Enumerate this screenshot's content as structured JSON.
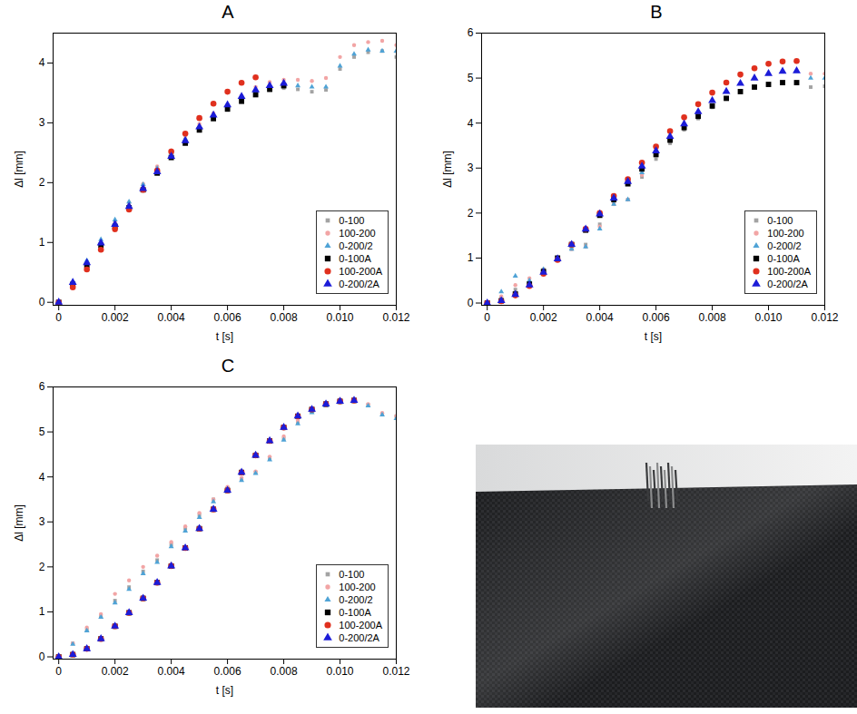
{
  "chart_data": [
    {
      "type": "scatter",
      "title": "A",
      "x_label": "t [s]",
      "y_label": "Δl [mm]",
      "x": [
        0,
        0.0005,
        0.001,
        0.0015,
        0.002,
        0.0025,
        0.003,
        0.0035,
        0.004,
        0.0045,
        0.005,
        0.0055,
        0.006,
        0.0065,
        0.007,
        0.0075,
        0.008,
        0.0085,
        0.009,
        0.0095,
        0.01,
        0.0105,
        0.011,
        0.0115,
        0.012
      ],
      "xlim": [
        -0.0002,
        0.012
      ],
      "xticks": [
        0,
        0.002,
        0.004,
        0.006,
        0.008,
        {
          "value": 0.01,
          "label": "0.010"
        },
        0.012
      ],
      "ylim": [
        -0.05,
        4.5
      ],
      "yticks": [
        0,
        1,
        2,
        3,
        4
      ],
      "grid": false,
      "legend": "bottom-right",
      "series": [
        {
          "name": "0-100",
          "color": "#a3a3a3",
          "marker": "square",
          "values": [
            0,
            0.3,
            0.63,
            0.97,
            1.3,
            1.62,
            1.92,
            2.22,
            2.48,
            2.72,
            2.92,
            3.1,
            3.26,
            3.38,
            3.48,
            3.55,
            3.58,
            3.56,
            3.52,
            3.55,
            3.9,
            4.1,
            4.18,
            4.2,
            4.1
          ]
        },
        {
          "name": "100-200",
          "color": "#f2a5a5",
          "marker": "circle",
          "values": [
            0,
            0.32,
            0.66,
            1.0,
            1.34,
            1.67,
            1.98,
            2.27,
            2.54,
            2.78,
            2.98,
            3.16,
            3.3,
            3.45,
            3.6,
            3.68,
            3.72,
            3.72,
            3.7,
            3.75,
            4.1,
            4.3,
            4.35,
            4.37,
            4.3
          ]
        },
        {
          "name": "0-200/2",
          "color": "#4fa3d6",
          "marker": "triangle",
          "values": [
            0,
            0.35,
            0.7,
            1.05,
            1.38,
            1.68,
            1.97,
            2.24,
            2.5,
            2.73,
            2.94,
            3.12,
            3.28,
            3.42,
            3.53,
            3.6,
            3.63,
            3.62,
            3.6,
            3.6,
            3.95,
            4.15,
            4.22,
            4.2,
            4.2
          ]
        },
        {
          "name": "0-100A",
          "color": "#000000",
          "marker": "square",
          "values": [
            0,
            0.3,
            0.62,
            0.95,
            1.27,
            1.58,
            1.88,
            2.16,
            2.42,
            2.66,
            2.88,
            3.07,
            3.23,
            3.36,
            3.47,
            3.56,
            3.62,
            null,
            null,
            null,
            null,
            null,
            null,
            null,
            null
          ]
        },
        {
          "name": "100-200A",
          "color": "#e0301e",
          "marker": "circle",
          "values": [
            0,
            0.25,
            0.55,
            0.88,
            1.22,
            1.55,
            1.88,
            2.2,
            2.52,
            2.82,
            3.08,
            3.32,
            3.52,
            3.67,
            3.76,
            null,
            null,
            null,
            null,
            null,
            null,
            null,
            null,
            null,
            null
          ]
        },
        {
          "name": "0-200/2A",
          "color": "#1c1cd8",
          "marker": "triangle",
          "values": [
            0,
            0.33,
            0.66,
            0.99,
            1.3,
            1.6,
            1.9,
            2.18,
            2.44,
            2.7,
            2.93,
            3.13,
            3.3,
            3.44,
            3.55,
            3.62,
            3.66,
            null,
            null,
            null,
            null,
            null,
            null,
            null,
            null
          ]
        }
      ]
    },
    {
      "type": "scatter",
      "title": "B",
      "x_label": "t [s]",
      "y_label": "Δl [mm]",
      "x": [
        0,
        0.0005,
        0.001,
        0.0015,
        0.002,
        0.0025,
        0.003,
        0.0035,
        0.004,
        0.0045,
        0.005,
        0.0055,
        0.006,
        0.0065,
        0.007,
        0.0075,
        0.008,
        0.0085,
        0.009,
        0.0095,
        0.01,
        0.0105,
        0.011,
        0.0115,
        0.012
      ],
      "xlim": [
        -0.0002,
        0.012
      ],
      "xticks": [
        0,
        0.002,
        0.004,
        0.006,
        0.008,
        {
          "value": 0.01,
          "label": "0.010"
        },
        0.012
      ],
      "ylim": [
        -0.05,
        6
      ],
      "yticks": [
        0,
        1,
        2,
        3,
        4,
        5,
        6
      ],
      "grid": false,
      "legend": "bottom-right",
      "series": [
        {
          "name": "0-100",
          "color": "#a3a3a3",
          "marker": "square",
          "values": [
            0,
            0.1,
            0.3,
            0.45,
            0.75,
            1.0,
            1.2,
            1.3,
            1.75,
            2.2,
            2.3,
            2.8,
            3.2,
            3.55,
            3.85,
            4.1,
            4.35,
            4.55,
            4.7,
            4.8,
            4.86,
            4.9,
            4.88,
            4.8,
            4.82
          ]
        },
        {
          "name": "100-200",
          "color": "#f2a5a5",
          "marker": "circle",
          "values": [
            0,
            0.15,
            0.4,
            0.55,
            0.75,
            1.0,
            1.2,
            1.25,
            1.7,
            2.2,
            2.3,
            2.85,
            3.4,
            3.8,
            4.1,
            4.4,
            4.65,
            4.88,
            5.05,
            5.2,
            5.3,
            5.36,
            5.37,
            5.1,
            5.1
          ]
        },
        {
          "name": "0-200/2",
          "color": "#4fa3d6",
          "marker": "triangle",
          "values": [
            0,
            0.25,
            0.6,
            0.5,
            0.75,
            0.95,
            1.2,
            1.25,
            1.65,
            2.2,
            2.3,
            2.9,
            3.35,
            3.7,
            3.98,
            4.25,
            4.5,
            4.7,
            4.88,
            5.0,
            5.1,
            5.15,
            5.15,
            5.0,
            5.0
          ]
        },
        {
          "name": "0-100A",
          "color": "#000000",
          "marker": "square",
          "values": [
            0,
            0.05,
            0.2,
            0.42,
            0.7,
            1.0,
            1.3,
            1.62,
            1.95,
            2.3,
            2.65,
            2.98,
            3.3,
            3.62,
            3.9,
            4.15,
            4.38,
            4.55,
            4.7,
            4.8,
            4.86,
            4.9,
            4.9,
            null,
            null
          ]
        },
        {
          "name": "100-200A",
          "color": "#e0301e",
          "marker": "circle",
          "values": [
            0,
            0.04,
            0.17,
            0.38,
            0.65,
            0.96,
            1.3,
            1.65,
            2.0,
            2.38,
            2.75,
            3.12,
            3.48,
            3.82,
            4.13,
            4.42,
            4.68,
            4.9,
            5.08,
            5.22,
            5.32,
            5.37,
            5.38,
            null,
            null
          ]
        },
        {
          "name": "0-200/2A",
          "color": "#1c1cd8",
          "marker": "triangle",
          "values": [
            0,
            0.05,
            0.19,
            0.4,
            0.68,
            0.98,
            1.3,
            1.64,
            1.98,
            2.33,
            2.7,
            3.04,
            3.38,
            3.7,
            3.98,
            4.25,
            4.5,
            4.7,
            4.88,
            5.0,
            5.1,
            5.15,
            5.16,
            null,
            null
          ]
        }
      ]
    },
    {
      "type": "scatter",
      "title": "C",
      "x_label": "t [s]",
      "y_label": "Δl [mm]",
      "x": [
        0,
        0.0005,
        0.001,
        0.0015,
        0.002,
        0.0025,
        0.003,
        0.0035,
        0.004,
        0.0045,
        0.005,
        0.0055,
        0.006,
        0.0065,
        0.007,
        0.0075,
        0.008,
        0.0085,
        0.009,
        0.0095,
        0.01,
        0.0105,
        0.011,
        0.0115,
        0.012
      ],
      "xlim": [
        -0.0002,
        0.012
      ],
      "xticks": [
        0,
        0.002,
        0.004,
        0.006,
        0.008,
        {
          "value": 0.01,
          "label": "0.010"
        },
        0.012
      ],
      "ylim": [
        -0.05,
        6
      ],
      "yticks": [
        0,
        1,
        2,
        3,
        4,
        5,
        6
      ],
      "grid": false,
      "legend": "bottom-right",
      "series": [
        {
          "name": "0-100",
          "color": "#a3a3a3",
          "marker": "square",
          "values": [
            0,
            0.3,
            0.6,
            0.9,
            1.25,
            1.55,
            1.9,
            2.15,
            2.5,
            2.85,
            3.15,
            3.5,
            3.75,
            3.95,
            4.1,
            4.4,
            4.85,
            5.2,
            5.45,
            5.6,
            5.7,
            5.7,
            5.6,
            5.4,
            5.35
          ]
        },
        {
          "name": "100-200",
          "color": "#f2a5a5",
          "marker": "circle",
          "values": [
            0,
            0.3,
            0.65,
            0.95,
            1.4,
            1.7,
            2.0,
            2.25,
            2.55,
            2.9,
            3.2,
            3.5,
            3.78,
            3.98,
            4.12,
            4.45,
            4.9,
            5.25,
            5.48,
            5.62,
            5.72,
            5.72,
            5.62,
            5.42,
            5.35
          ]
        },
        {
          "name": "0-200/2",
          "color": "#4fa3d6",
          "marker": "triangle",
          "values": [
            0,
            0.28,
            0.58,
            0.88,
            1.2,
            1.5,
            1.85,
            2.1,
            2.45,
            2.8,
            3.1,
            3.45,
            3.72,
            3.92,
            4.08,
            4.38,
            4.82,
            5.18,
            5.43,
            5.58,
            5.68,
            5.68,
            5.58,
            5.38,
            5.3
          ]
        },
        {
          "name": "0-100A",
          "color": "#000000",
          "marker": "square",
          "values": [
            0,
            0.05,
            0.18,
            0.4,
            0.68,
            0.98,
            1.3,
            1.65,
            2.02,
            2.42,
            2.85,
            3.28,
            3.7,
            4.1,
            4.48,
            4.8,
            5.1,
            5.35,
            5.5,
            5.62,
            5.68,
            5.7,
            null,
            null,
            null
          ]
        },
        {
          "name": "100-200A",
          "color": "#e0301e",
          "marker": "circle",
          "values": [
            0,
            0.05,
            0.18,
            0.4,
            0.68,
            0.98,
            1.3,
            1.65,
            2.02,
            2.42,
            2.85,
            3.28,
            3.7,
            4.1,
            4.48,
            4.8,
            5.1,
            5.35,
            5.5,
            5.62,
            5.68,
            5.7,
            null,
            null,
            null
          ]
        },
        {
          "name": "0-200/2A",
          "color": "#1c1cd8",
          "marker": "triangle",
          "values": [
            0,
            0.05,
            0.18,
            0.4,
            0.68,
            0.98,
            1.3,
            1.65,
            2.02,
            2.42,
            2.85,
            3.28,
            3.7,
            4.1,
            4.48,
            4.8,
            5.1,
            5.35,
            5.5,
            5.62,
            5.68,
            5.7,
            null,
            null,
            null
          ]
        }
      ]
    }
  ]
}
